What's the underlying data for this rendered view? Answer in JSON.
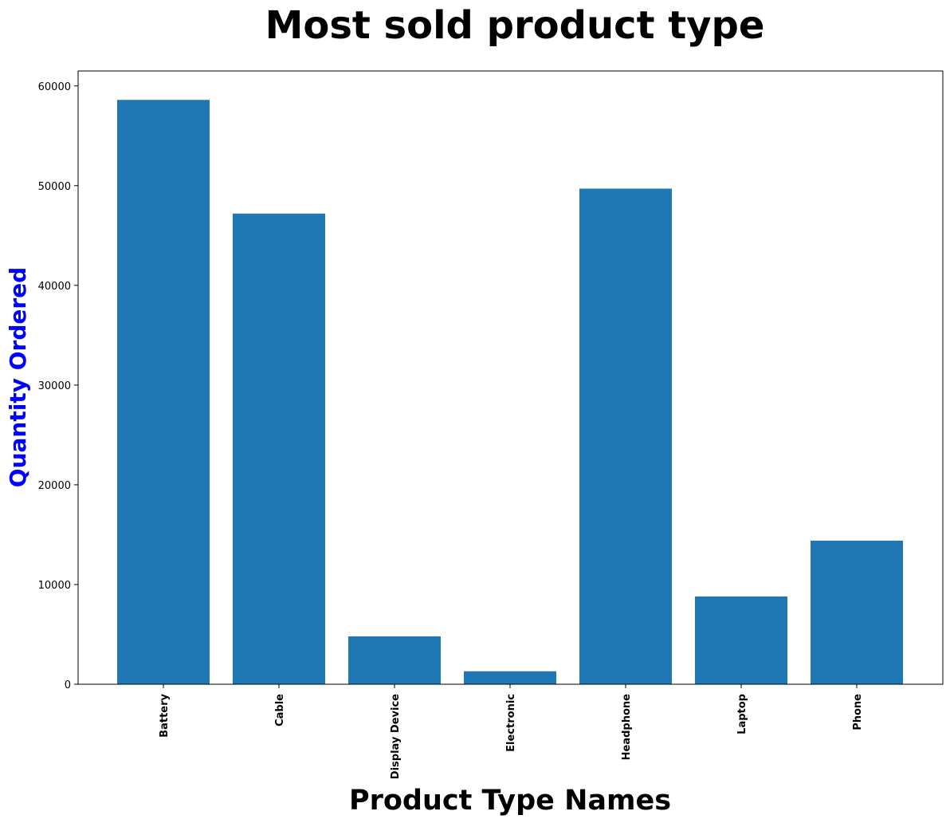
{
  "chart_data": {
    "type": "bar",
    "title": "Most sold product type",
    "xlabel": "Product Type Names",
    "ylabel": "Quantity Ordered",
    "categories": [
      "Battery",
      "Cable",
      "Display Device",
      "Electronic",
      "Headphone",
      "Laptop",
      "Phone"
    ],
    "values": [
      58600,
      47200,
      4800,
      1300,
      49700,
      8800,
      14400
    ],
    "ylim": [
      0,
      61500
    ],
    "yticks": [
      0,
      10000,
      20000,
      30000,
      40000,
      50000,
      60000
    ],
    "ytick_labels": [
      "0",
      "10000",
      "20000",
      "30000",
      "40000",
      "50000",
      "60000"
    ],
    "grid": false,
    "bar_color": "#1f77b4",
    "ylabel_color": "#0000ff",
    "xtick_rotation": "vertical"
  }
}
